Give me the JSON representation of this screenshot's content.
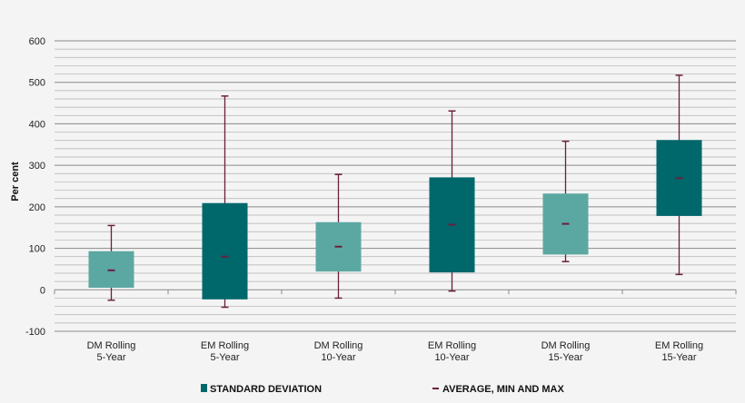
{
  "chart_data": {
    "type": "box",
    "ylabel": "Per cent",
    "ylim": [
      -100,
      600
    ],
    "yticks": [
      600,
      500,
      400,
      300,
      200,
      100,
      0,
      -100
    ],
    "grid": true,
    "categories": [
      [
        "DM Rolling",
        "5-Year"
      ],
      [
        "EM Rolling",
        "5-Year"
      ],
      [
        "DM Rolling",
        "10-Year"
      ],
      [
        "EM Rolling",
        "10-Year"
      ],
      [
        "DM Rolling",
        "15-Year"
      ],
      [
        "EM Rolling",
        "15-Year"
      ]
    ],
    "series": [
      {
        "name": "STANDARD DEVIATION",
        "box_low": [
          5,
          -23,
          44,
          42,
          85,
          178
        ],
        "box_high": [
          93,
          209,
          163,
          271,
          232,
          361
        ]
      },
      {
        "name": "AVERAGE, MIN AND MAX",
        "average": [
          47,
          80,
          104,
          157,
          159,
          269
        ],
        "min": [
          -25,
          -42,
          -20,
          -3,
          68,
          37
        ],
        "max": [
          155,
          467,
          278,
          431,
          358,
          517
        ]
      }
    ],
    "box_colors": [
      "#5ba8a2",
      "#00676b",
      "#5ba8a2",
      "#00676b",
      "#5ba8a2",
      "#00676b"
    ],
    "whisker_color": "#6b1f3d",
    "legend": {
      "placement": "bottom",
      "items": [
        {
          "label": "STANDARD DEVIATION",
          "marker": "square",
          "color": "#00676b"
        },
        {
          "label": "AVERAGE, MIN AND MAX",
          "marker": "dash",
          "color": "#6b1f3d"
        }
      ]
    }
  }
}
